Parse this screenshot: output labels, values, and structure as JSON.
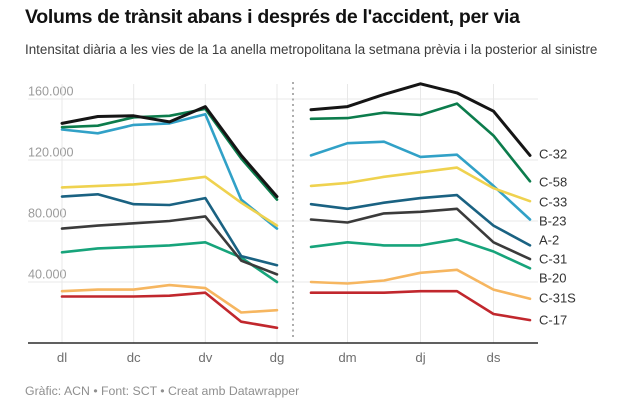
{
  "header": {
    "title": "Volums de trànsit abans i després de l'accident, per via",
    "subtitle": "Intensitat diària a les vies de la 1a anella metropolitana la setmana prèvia i la posterior al sinistre"
  },
  "footer": {
    "text": "Gràfic: ACN • Font: SCT • Creat amb Datawrapper"
  },
  "chart_data": {
    "type": "line",
    "title": "Volums de trànsit abans i després de l'accident, per via",
    "subtitle": "Intensitat diària a les vies de la 1a anella metropolitana la setmana prèvia i la posterior al sinistre",
    "x_days": [
      "dl",
      "dm",
      "dc",
      "dj",
      "dv",
      "ds",
      "dg"
    ],
    "panels": [
      {
        "id": "before",
        "tick_day_indices": [
          0,
          2,
          4,
          6
        ]
      },
      {
        "id": "after",
        "tick_day_indices": [
          1,
          3,
          5
        ]
      }
    ],
    "y_ticks": [
      40000,
      80000,
      120000,
      160000
    ],
    "y_tick_labels": [
      "40.000",
      "80.000",
      "120.000",
      "160.000"
    ],
    "ylim": [
      0,
      175000
    ],
    "grid": true,
    "separator_style": "dashed",
    "legend_position": "right-of-lines",
    "colors": {
      "grid": "#e8e8e8",
      "axis": "#2b2b2b",
      "separator": "#adadad",
      "y_tick_text": "#9b9b9b",
      "x_tick_text": "#6f6f6f",
      "series_label_text": "#333333"
    },
    "series": [
      {
        "name": "C-32",
        "color": "#151515",
        "width": 3,
        "before": [
          144000,
          148500,
          149000,
          145000,
          155000,
          123000,
          96000
        ],
        "after": [
          153000,
          155000,
          163000,
          170000,
          164000,
          152000,
          123000
        ],
        "label_y": 154
      },
      {
        "name": "C-58",
        "color": "#0c7c4c",
        "width": 2.6,
        "before": [
          141500,
          142500,
          148000,
          149000,
          153500,
          121000,
          94000
        ],
        "after": [
          147000,
          147500,
          151000,
          149500,
          157000,
          136000,
          106000
        ],
        "label_y": 182
      },
      {
        "name": "C-33",
        "color": "#efd24f",
        "width": 2.6,
        "before": [
          102000,
          103000,
          104000,
          106000,
          109000,
          92000,
          77000
        ],
        "after": [
          103000,
          105000,
          109000,
          112000,
          115000,
          101500,
          93000
        ],
        "label_y": 202
      },
      {
        "name": "B-23",
        "color": "#31a1c7",
        "width": 2.6,
        "before": [
          140000,
          137500,
          143000,
          144000,
          150000,
          94000,
          75000
        ],
        "after": [
          123000,
          131000,
          132000,
          122000,
          123500,
          103000,
          81000
        ],
        "label_y": 221
      },
      {
        "name": "A-2",
        "color": "#1a6282",
        "width": 2.6,
        "before": [
          96000,
          97500,
          91000,
          90500,
          95000,
          57000,
          51000
        ],
        "after": [
          91000,
          88000,
          92000,
          95000,
          97000,
          77000,
          64000
        ],
        "label_y": 240
      },
      {
        "name": "C-31",
        "color": "#3b3b3b",
        "width": 2.6,
        "before": [
          75000,
          77000,
          78500,
          80000,
          83000,
          54000,
          45000
        ],
        "after": [
          81000,
          79000,
          85000,
          86000,
          88000,
          66000,
          55000
        ],
        "label_y": 259
      },
      {
        "name": "B-20",
        "color": "#17a47b",
        "width": 2.6,
        "before": [
          59500,
          62000,
          63000,
          64000,
          66000,
          56000,
          40000
        ],
        "after": [
          63000,
          66000,
          64000,
          64000,
          68000,
          60000,
          49000
        ],
        "label_y": 278
      },
      {
        "name": "C-31S",
        "color": "#f6b660",
        "width": 2.6,
        "before": [
          34000,
          35000,
          35000,
          38000,
          36000,
          20000,
          21500
        ],
        "after": [
          40000,
          39000,
          41000,
          46000,
          48000,
          35000,
          29000
        ],
        "label_y": 298
      },
      {
        "name": "C-17",
        "color": "#c1272d",
        "width": 2.6,
        "before": [
          30500,
          30500,
          30500,
          31000,
          33000,
          14000,
          10000
        ],
        "after": [
          33000,
          33000,
          33000,
          34000,
          34000,
          19000,
          15000
        ],
        "label_y": 320
      }
    ]
  }
}
